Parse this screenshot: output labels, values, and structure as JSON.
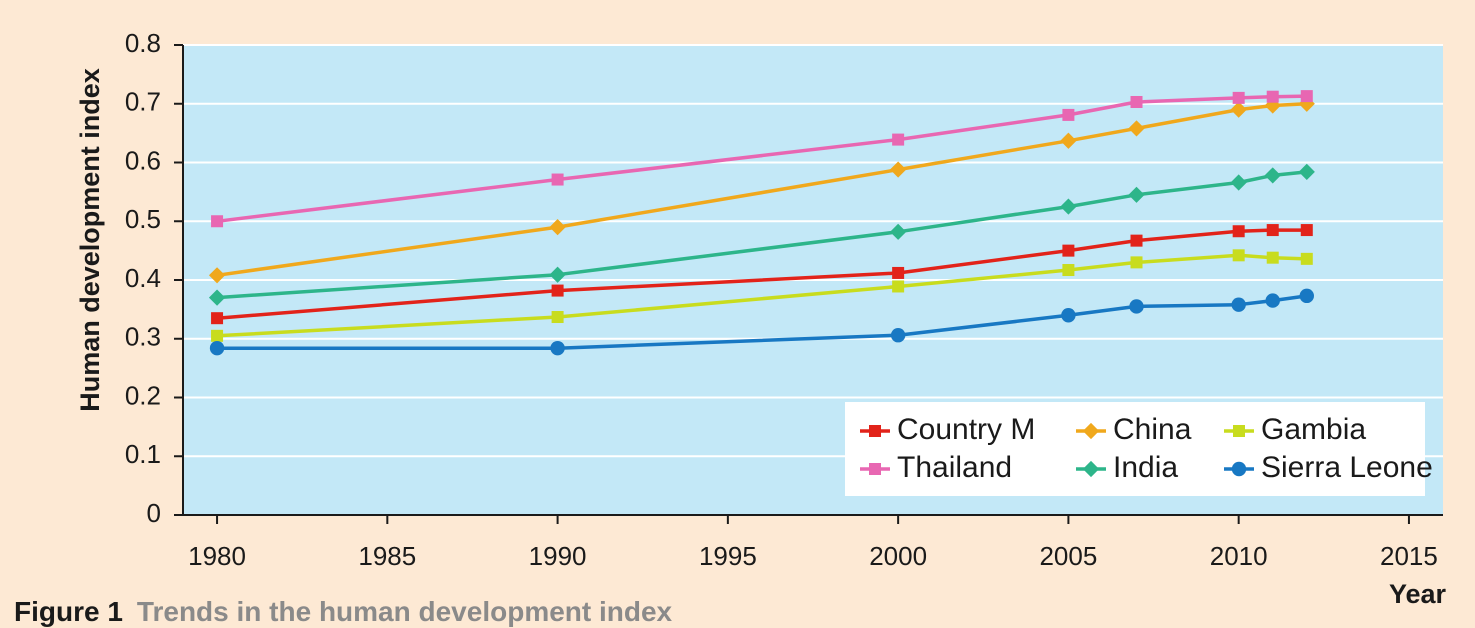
{
  "chart_data": {
    "type": "line",
    "title": "",
    "xlabel": "Year",
    "ylabel": "Human development index",
    "xlim": [
      1979,
      2016
    ],
    "ylim": [
      0,
      0.8
    ],
    "xticks": [
      1980,
      1985,
      1990,
      1995,
      2000,
      2005,
      2010,
      2015
    ],
    "yticks": [
      0,
      0.1,
      0.2,
      0.3,
      0.4,
      0.5,
      0.6,
      0.7,
      0.8
    ],
    "ytick_labels": [
      "0",
      "0.1",
      "0.2",
      "0.3",
      "0.4",
      "0.5",
      "0.6",
      "0.7",
      "0.8"
    ],
    "grid": "horizontal",
    "legend_position": "bottom-right",
    "plot_background": "#c3e8f7",
    "x": [
      1980,
      1990,
      2000,
      2005,
      2007,
      2010,
      2011,
      2012
    ],
    "series": [
      {
        "name": "Country M",
        "color": "#e2231a",
        "marker": "square",
        "values": [
          0.335,
          0.382,
          0.412,
          0.45,
          0.467,
          0.483,
          0.485,
          0.485
        ]
      },
      {
        "name": "China",
        "color": "#f0a81c",
        "marker": "diamond",
        "values": [
          0.408,
          0.49,
          0.588,
          0.637,
          0.658,
          0.69,
          0.697,
          0.7
        ]
      },
      {
        "name": "Gambia",
        "color": "#c8dc1e",
        "marker": "square",
        "values": [
          0.305,
          0.337,
          0.389,
          0.417,
          0.43,
          0.442,
          0.438,
          0.436
        ]
      },
      {
        "name": "Thailand",
        "color": "#e867b2",
        "marker": "square",
        "values": [
          0.5,
          0.571,
          0.639,
          0.681,
          0.703,
          0.71,
          0.712,
          0.713
        ]
      },
      {
        "name": "India",
        "color": "#2db58a",
        "marker": "diamond",
        "values": [
          0.37,
          0.409,
          0.482,
          0.525,
          0.545,
          0.566,
          0.578,
          0.584
        ]
      },
      {
        "name": "Sierra Leone",
        "color": "#1878c3",
        "marker": "circle",
        "values": [
          0.284,
          0.284,
          0.306,
          0.34,
          0.355,
          0.358,
          0.365,
          0.373
        ]
      }
    ]
  },
  "caption": {
    "number": "Figure 1",
    "text": "Trends in the human development index"
  }
}
